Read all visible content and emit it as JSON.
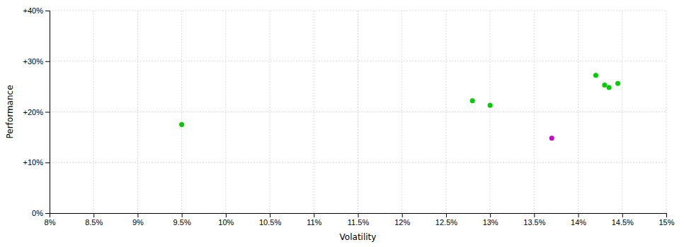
{
  "chart_data": {
    "type": "scatter",
    "xlabel": "Volatility",
    "ylabel": "Performance",
    "xlim": [
      0.08,
      0.15
    ],
    "ylim": [
      0.0,
      0.4
    ],
    "xticks": [
      {
        "value": 0.08,
        "label": "8%"
      },
      {
        "value": 0.085,
        "label": "8.5%"
      },
      {
        "value": 0.09,
        "label": "9%"
      },
      {
        "value": 0.095,
        "label": "9.5%"
      },
      {
        "value": 0.1,
        "label": "10%"
      },
      {
        "value": 0.105,
        "label": "10.5%"
      },
      {
        "value": 0.11,
        "label": "11%"
      },
      {
        "value": 0.115,
        "label": "11.5%"
      },
      {
        "value": 0.12,
        "label": "12%"
      },
      {
        "value": 0.125,
        "label": "12.5%"
      },
      {
        "value": 0.13,
        "label": "13%"
      },
      {
        "value": 0.135,
        "label": "13.5%"
      },
      {
        "value": 0.14,
        "label": "14%"
      },
      {
        "value": 0.145,
        "label": "14.5%"
      },
      {
        "value": 0.15,
        "label": "15%"
      }
    ],
    "yticks": [
      {
        "value": 0.0,
        "label": "0%"
      },
      {
        "value": 0.1,
        "label": "+10%"
      },
      {
        "value": 0.2,
        "label": "+20%"
      },
      {
        "value": 0.3,
        "label": "+30%"
      },
      {
        "value": 0.4,
        "label": "+40%"
      }
    ],
    "grid": true,
    "series": [
      {
        "color": "#00cc00",
        "x": [
          0.095,
          0.128,
          0.13,
          0.142,
          0.143,
          0.1435,
          0.1445
        ],
        "values": [
          0.175,
          0.222,
          0.213,
          0.272,
          0.253,
          0.248,
          0.256
        ]
      },
      {
        "color": "#cc00cc",
        "x": [
          0.137
        ],
        "values": [
          0.148
        ]
      }
    ]
  }
}
